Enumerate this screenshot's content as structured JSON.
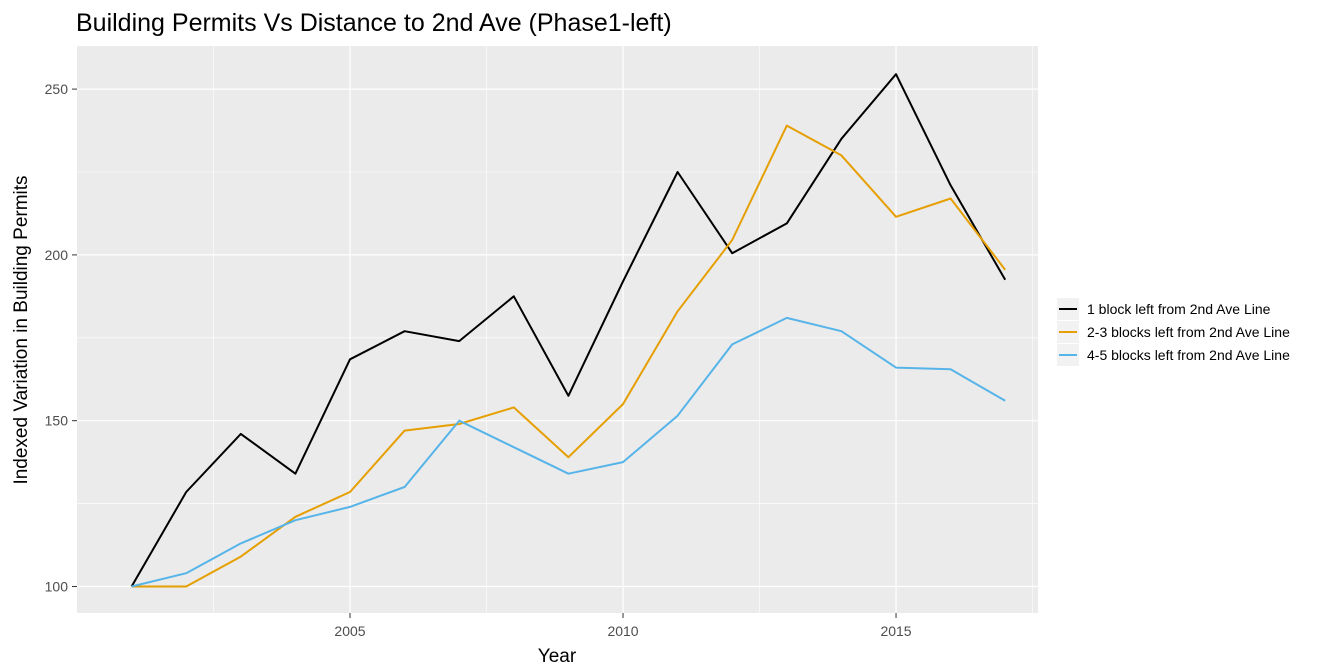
{
  "chart_data": {
    "type": "line",
    "title": "Building Permits Vs Distance to 2nd Ave (Phase1-left)",
    "xlabel": "Year",
    "ylabel": "Indexed Variation in Building Permits",
    "xlim": [
      2000.0,
      2017.6
    ],
    "ylim": [
      92,
      263
    ],
    "x_ticks": [
      2005,
      2010,
      2015
    ],
    "x_minor_ticks": [
      2002.5,
      2007.5,
      2012.5,
      2017.5
    ],
    "y_ticks": [
      100,
      150,
      200,
      250
    ],
    "y_minor_ticks": [
      125,
      175,
      225
    ],
    "grid": true,
    "legend_position": "right",
    "x": [
      2001,
      2002,
      2003,
      2004,
      2005,
      2006,
      2007,
      2008,
      2009,
      2010,
      2011,
      2012,
      2013,
      2014,
      2015,
      2016,
      2017
    ],
    "series": [
      {
        "name": "1 block left from 2nd Ave Line",
        "color": "#000000",
        "values": [
          100,
          128.5,
          146,
          134,
          168.5,
          177,
          174,
          187.5,
          157.5,
          192,
          225,
          200.5,
          209.5,
          235,
          254.5,
          221,
          192.5
        ]
      },
      {
        "name": "2-3 blocks left from 2nd Ave Line",
        "color": "#E69F00",
        "values": [
          100,
          100,
          109,
          121,
          128.5,
          147,
          149,
          154,
          139,
          155,
          183,
          204.5,
          239,
          230,
          211.5,
          217,
          195.5
        ]
      },
      {
        "name": "4-5 blocks left from 2nd Ave Line",
        "color": "#56B4E9",
        "values": [
          100,
          104,
          113,
          120,
          124,
          130,
          150,
          142,
          134,
          137.5,
          151.5,
          173,
          181,
          177,
          166,
          165.5,
          156
        ]
      }
    ]
  },
  "style": {
    "panel_background": "#EBEBEB",
    "grid_major": "#FFFFFF",
    "tick_color": "#333333",
    "text_color": "#000000",
    "tick_label_color": "#4D4D4D"
  }
}
